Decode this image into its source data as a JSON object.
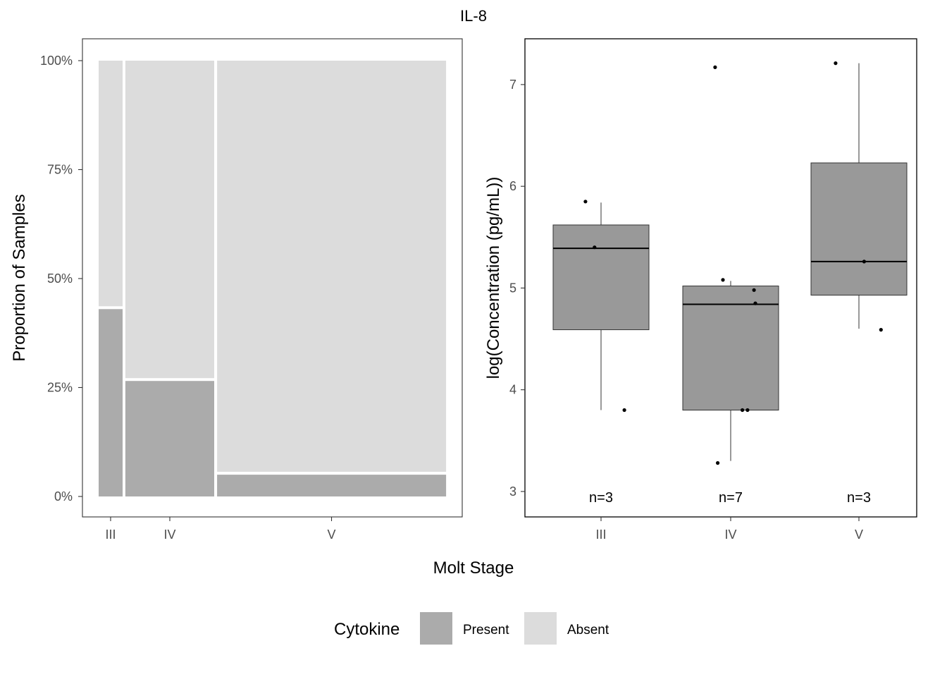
{
  "title": "IL-8",
  "shared_xlabel": "Molt Stage",
  "legend": {
    "title": "Cytokine",
    "items": [
      {
        "label": "Present",
        "color": "#ababab"
      },
      {
        "label": "Absent",
        "color": "#dcdcdc"
      }
    ]
  },
  "chart_data": [
    {
      "type": "mosaic",
      "ylabel": "Proportion of Samples",
      "ylim": [
        0,
        1
      ],
      "yticks": [
        {
          "value": 0,
          "label": "0%"
        },
        {
          "value": 0.25,
          "label": "25%"
        },
        {
          "value": 0.5,
          "label": "50%"
        },
        {
          "value": 0.75,
          "label": "75%"
        },
        {
          "value": 1,
          "label": "100%"
        }
      ],
      "categories": [
        "III",
        "IV",
        "V"
      ],
      "column_width_share": [
        0.07,
        0.26,
        0.67
      ],
      "series": [
        {
          "name": "Present",
          "values": [
            0.43,
            0.265,
            0.05
          ]
        },
        {
          "name": "Absent",
          "values": [
            0.57,
            0.735,
            0.95
          ]
        }
      ]
    },
    {
      "type": "box",
      "ylabel": "log(Concentration (pg/mL))",
      "ylim": [
        2.75,
        7.45
      ],
      "yticks": [
        3,
        4,
        5,
        6,
        7
      ],
      "categories": [
        "III",
        "IV",
        "V"
      ],
      "boxes": [
        {
          "category": "III",
          "whisker_low": 3.8,
          "q1": 4.59,
          "median": 5.39,
          "q3": 5.62,
          "whisker_high": 5.84,
          "n_label": "n=3"
        },
        {
          "category": "IV",
          "whisker_low": 3.3,
          "q1": 3.8,
          "median": 4.84,
          "q3": 5.02,
          "whisker_high": 5.07,
          "n_label": "n=7"
        },
        {
          "category": "V",
          "whisker_low": 4.6,
          "q1": 4.93,
          "median": 5.26,
          "q3": 6.23,
          "whisker_high": 7.21,
          "n_label": "n=3"
        }
      ],
      "points": [
        {
          "category": "III",
          "jitter": -0.12,
          "y": 5.85
        },
        {
          "category": "III",
          "jitter": -0.05,
          "y": 5.4
        },
        {
          "category": "III",
          "jitter": 0.18,
          "y": 3.8
        },
        {
          "category": "IV",
          "jitter": -0.12,
          "y": 7.17
        },
        {
          "category": "IV",
          "jitter": -0.06,
          "y": 5.08
        },
        {
          "category": "IV",
          "jitter": 0.18,
          "y": 4.98
        },
        {
          "category": "IV",
          "jitter": 0.19,
          "y": 4.85
        },
        {
          "category": "IV",
          "jitter": 0.09,
          "y": 3.8
        },
        {
          "category": "IV",
          "jitter": 0.13,
          "y": 3.8
        },
        {
          "category": "IV",
          "jitter": -0.1,
          "y": 3.28
        },
        {
          "category": "V",
          "jitter": -0.18,
          "y": 7.21
        },
        {
          "category": "V",
          "jitter": 0.04,
          "y": 5.26
        },
        {
          "category": "V",
          "jitter": 0.17,
          "y": 4.59
        }
      ]
    }
  ]
}
